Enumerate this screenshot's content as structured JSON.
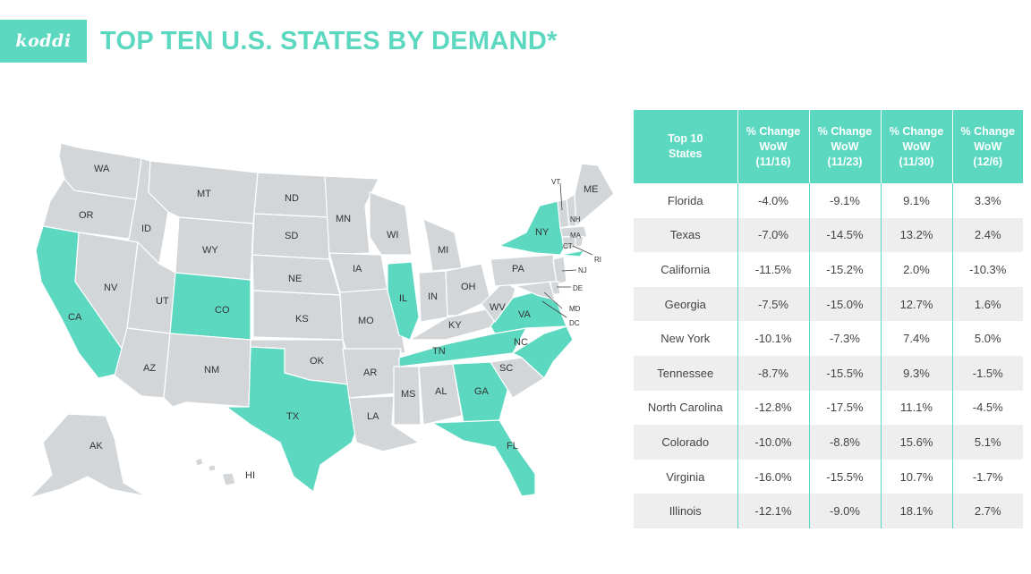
{
  "brand": {
    "logo_text": "koddi",
    "accent": "#5dd8c0"
  },
  "title": "TOP TEN U.S. STATES BY DEMAND*",
  "map": {
    "highlight_color": "#5dd8c0",
    "base_color": "#d3d6d8",
    "labels": [
      "WA",
      "OR",
      "CA",
      "ID",
      "NV",
      "MT",
      "WY",
      "UT",
      "AZ",
      "CO",
      "NM",
      "ND",
      "SD",
      "NE",
      "KS",
      "OK",
      "TX",
      "MN",
      "IA",
      "MO",
      "AR",
      "LA",
      "WI",
      "IL",
      "MI",
      "IN",
      "OH",
      "KY",
      "TN",
      "MS",
      "AL",
      "GA",
      "FL",
      "SC",
      "NC",
      "VA",
      "WV",
      "PA",
      "NY",
      "VT",
      "NH",
      "ME",
      "MA",
      "CT",
      "RI",
      "NJ",
      "DE",
      "MD",
      "DC",
      "AK",
      "HI"
    ],
    "highlighted_states": [
      "CA",
      "CO",
      "TX",
      "IL",
      "TN",
      "GA",
      "FL",
      "NC",
      "VA",
      "NY"
    ]
  },
  "table": {
    "headers": [
      {
        "top": "Top 10",
        "bottom": "States"
      },
      {
        "top": "% Change",
        "mid": "WoW",
        "bottom": "(11/16)"
      },
      {
        "top": "% Change",
        "mid": "WoW",
        "bottom": "(11/23)"
      },
      {
        "top": "% Change",
        "mid": "WoW",
        "bottom": "(11/30)"
      },
      {
        "top": "% Change",
        "mid": "WoW",
        "bottom": "(12/6)"
      }
    ],
    "rows": [
      [
        "Florida",
        "-4.0%",
        "-9.1%",
        "9.1%",
        "3.3%"
      ],
      [
        "Texas",
        "-7.0%",
        "-14.5%",
        "13.2%",
        "2.4%"
      ],
      [
        "California",
        "-11.5%",
        "-15.2%",
        "2.0%",
        "-10.3%"
      ],
      [
        "Georgia",
        "-7.5%",
        "-15.0%",
        "12.7%",
        "1.6%"
      ],
      [
        "New York",
        "-10.1%",
        "-7.3%",
        "7.4%",
        "5.0%"
      ],
      [
        "Tennessee",
        "-8.7%",
        "-15.5%",
        "9.3%",
        "-1.5%"
      ],
      [
        "North Carolina",
        "-12.8%",
        "-17.5%",
        "11.1%",
        "-4.5%"
      ],
      [
        "Colorado",
        "-10.0%",
        "-8.8%",
        "15.6%",
        "5.1%"
      ],
      [
        "Virginia",
        "-16.0%",
        "-15.5%",
        "10.7%",
        "-1.7%"
      ],
      [
        "Illinois",
        "-12.1%",
        "-9.0%",
        "18.1%",
        "2.7%"
      ]
    ]
  }
}
